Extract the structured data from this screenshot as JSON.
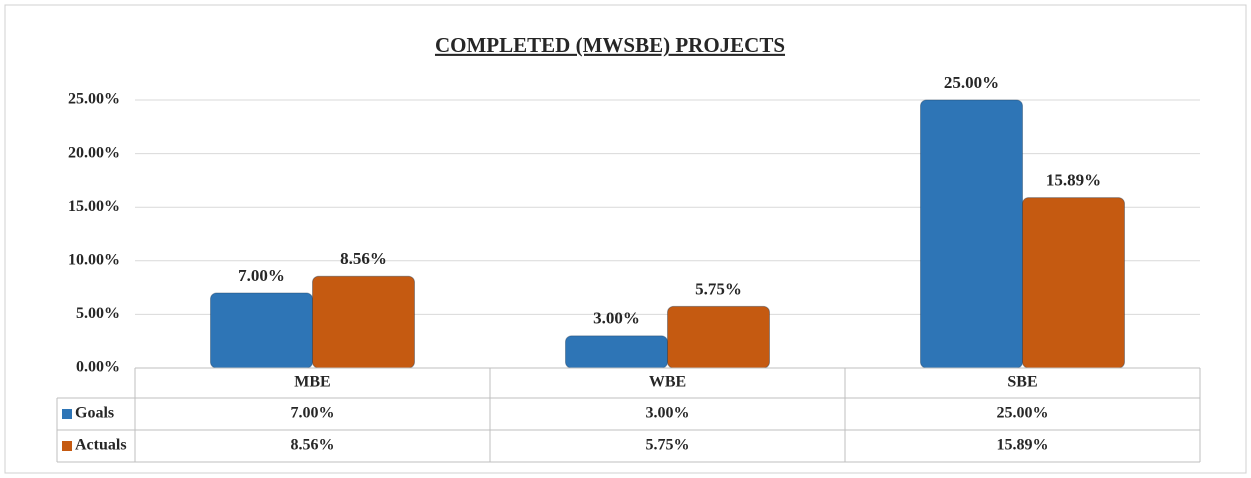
{
  "chart_data": {
    "type": "bar",
    "title": "COMPLETED (MWSBE) PROJECTS",
    "categories": [
      "MBE",
      "WBE",
      "SBE"
    ],
    "series": [
      {
        "name": "Goals",
        "color": "#2e75b6",
        "values": [
          7,
          3,
          25
        ],
        "value_labels": [
          "7.00%",
          "3.00%",
          "25.00%"
        ]
      },
      {
        "name": "Actuals",
        "color": "#c55a11",
        "values": [
          8.56,
          5.75,
          15.89
        ],
        "value_labels": [
          "8.56%",
          "5.75%",
          "15.89%"
        ]
      }
    ],
    "ylim": [
      0,
      25
    ],
    "yticks": [
      {
        "value": 0,
        "label": "0.00%"
      },
      {
        "value": 5,
        "label": "5.00%"
      },
      {
        "value": 10,
        "label": "10.00%"
      },
      {
        "value": 15,
        "label": "15.00%"
      },
      {
        "value": 20,
        "label": "20.00%"
      },
      {
        "value": 25,
        "label": "25.00%"
      }
    ],
    "grid": true,
    "data_table": true
  }
}
